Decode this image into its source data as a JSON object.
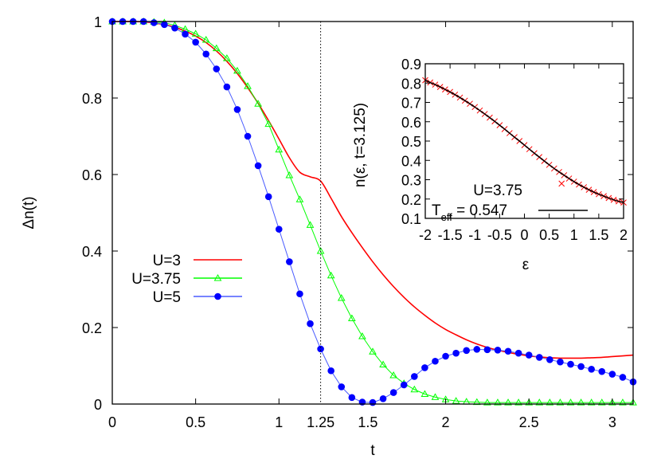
{
  "chart_data": [
    {
      "id": "main",
      "type": "line",
      "title": "",
      "xlabel": "t",
      "ylabel": "Δn(t)",
      "xlim": [
        0,
        3.125
      ],
      "ylim": [
        0,
        1
      ],
      "xticks": [
        0,
        0.5,
        1,
        1.25,
        1.5,
        2,
        2.5,
        3
      ],
      "xtick_labels": [
        "0",
        "0.5",
        "1",
        "1.25",
        "1.5",
        "2",
        "2.5",
        "3"
      ],
      "yticks": [
        0,
        0.2,
        0.4,
        0.6,
        0.8,
        1
      ],
      "ytick_labels": [
        "0",
        "0.2",
        "0.4",
        "0.6",
        "0.8",
        "1"
      ],
      "grid": false,
      "vline": {
        "x": 1.25,
        "style": "dotted"
      },
      "legend_position": "left-center",
      "x": [
        0,
        0.0625,
        0.125,
        0.1875,
        0.25,
        0.3125,
        0.375,
        0.4375,
        0.5,
        0.5625,
        0.625,
        0.6875,
        0.75,
        0.8125,
        0.875,
        0.9375,
        1,
        1.0625,
        1.125,
        1.1875,
        1.25,
        1.3125,
        1.375,
        1.4375,
        1.5,
        1.5625,
        1.625,
        1.6875,
        1.75,
        1.8125,
        1.875,
        1.9375,
        2,
        2.0625,
        2.125,
        2.1875,
        2.25,
        2.3125,
        2.375,
        2.4375,
        2.5,
        2.5625,
        2.625,
        2.6875,
        2.75,
        2.8125,
        2.875,
        2.9375,
        3,
        3.0625,
        3.125
      ],
      "series": [
        {
          "name": "U=3",
          "color": "#ff0000",
          "marker": "none",
          "values": [
            1,
            1,
            1,
            0.999,
            0.996,
            0.992,
            0.985,
            0.975,
            0.962,
            0.945,
            0.923,
            0.896,
            0.864,
            0.827,
            0.786,
            0.741,
            0.693,
            0.644,
            0.606,
            0.594,
            0.583,
            0.538,
            0.49,
            0.448,
            0.409,
            0.372,
            0.338,
            0.307,
            0.279,
            0.254,
            0.232,
            0.212,
            0.195,
            0.181,
            0.168,
            0.157,
            0.148,
            0.141,
            0.135,
            0.13,
            0.126,
            0.123,
            0.121,
            0.12,
            0.12,
            0.12,
            0.121,
            0.122,
            0.124,
            0.126,
            0.128
          ]
        },
        {
          "name": "U=3.75",
          "color": "#00ff00",
          "marker": "triangle",
          "values": [
            1,
            1,
            1,
            1,
            0.999,
            0.997,
            0.99,
            0.98,
            0.968,
            0.952,
            0.93,
            0.904,
            0.871,
            0.831,
            0.785,
            0.732,
            0.665,
            0.598,
            0.535,
            0.468,
            0.4,
            0.336,
            0.277,
            0.224,
            0.177,
            0.137,
            0.103,
            0.075,
            0.054,
            0.038,
            0.026,
            0.018,
            0.012,
            0.008,
            0.006,
            0.005,
            0.004,
            0.004,
            0.004,
            0.004,
            0.004,
            0.004,
            0.004,
            0.004,
            0.004,
            0.004,
            0.004,
            0.004,
            0.004,
            0.004,
            0.004
          ]
        },
        {
          "name": "U=5",
          "color": "#0000ff",
          "marker": "filled-circle",
          "values": [
            1,
            1,
            1,
            1,
            0.997,
            0.992,
            0.983,
            0.967,
            0.946,
            0.915,
            0.876,
            0.829,
            0.77,
            0.7,
            0.623,
            0.542,
            0.457,
            0.372,
            0.288,
            0.21,
            0.144,
            0.087,
            0.045,
            0.017,
            0.005,
            0.004,
            0.014,
            0.03,
            0.05,
            0.072,
            0.095,
            0.112,
            0.125,
            0.133,
            0.14,
            0.143,
            0.142,
            0.141,
            0.138,
            0.133,
            0.128,
            0.122,
            0.116,
            0.11,
            0.104,
            0.098,
            0.091,
            0.085,
            0.078,
            0.07,
            0.058
          ]
        }
      ]
    },
    {
      "id": "inset",
      "type": "scatter",
      "title": "",
      "xlabel": "ε",
      "ylabel": "n(ε, t=3.125)",
      "xlim": [
        -2,
        2
      ],
      "ylim": [
        0.1,
        0.9
      ],
      "xticks": [
        -2,
        -1.5,
        -1,
        -0.5,
        0,
        0.5,
        1,
        1.5,
        2
      ],
      "xtick_labels": [
        "-2",
        "-1.5",
        "-1",
        "-0.5",
        "0",
        "0.5",
        "1",
        "1.5",
        "2"
      ],
      "yticks": [
        0.1,
        0.2,
        0.3,
        0.4,
        0.5,
        0.6,
        0.7,
        0.8,
        0.9
      ],
      "ytick_labels": [
        "0.1",
        "0.2",
        "0.3",
        "0.4",
        "0.5",
        "0.6",
        "0.7",
        "0.8",
        "0.9"
      ],
      "grid": false,
      "legend_position": "bottom-left",
      "series": [
        {
          "name": "U=3.75",
          "color": "#ff0000",
          "marker": "cross",
          "note": "data points dense along fit curve, one outlier",
          "x": [
            -2,
            -1.9,
            -1.8,
            -1.7,
            -1.6,
            -1.5,
            -1.4,
            -1.3,
            -1.2,
            -1.1,
            -1,
            -0.9,
            -0.8,
            -0.7,
            -0.6,
            -0.5,
            -0.4,
            -0.3,
            -0.2,
            -0.1,
            0,
            0.1,
            0.2,
            0.3,
            0.4,
            0.5,
            0.6,
            0.7,
            0.75,
            0.8,
            0.9,
            1,
            1.1,
            1.2,
            1.3,
            1.4,
            1.5,
            1.6,
            1.7,
            1.8,
            1.9,
            2
          ],
          "y": [
            0.815,
            0.803,
            0.792,
            0.78,
            0.767,
            0.754,
            0.74,
            0.725,
            0.709,
            0.693,
            0.676,
            0.658,
            0.64,
            0.621,
            0.602,
            0.582,
            0.562,
            0.541,
            0.52,
            0.5,
            0.479,
            0.458,
            0.437,
            0.417,
            0.397,
            0.377,
            0.358,
            0.34,
            0.28,
            0.323,
            0.306,
            0.29,
            0.275,
            0.261,
            0.248,
            0.236,
            0.225,
            0.215,
            0.205,
            0.196,
            0.188,
            0.182
          ]
        },
        {
          "name": "T_eff = 0.547",
          "color": "#000000",
          "marker": "none",
          "fit": "fermi",
          "T_eff": 0.547
        }
      ]
    }
  ],
  "main_legend": [
    {
      "label": "U=3",
      "color": "#ff0000",
      "marker": "none"
    },
    {
      "label": "U=3.75",
      "color": "#00ff00",
      "marker": "triangle"
    },
    {
      "label": "U=5",
      "color": "#0000ff",
      "marker": "filled-circle"
    }
  ],
  "inset_legend": {
    "points_label": "U=3.75",
    "line_label_main": "T",
    "line_label_sub": "eff",
    "line_label_rest": " = 0.547"
  }
}
